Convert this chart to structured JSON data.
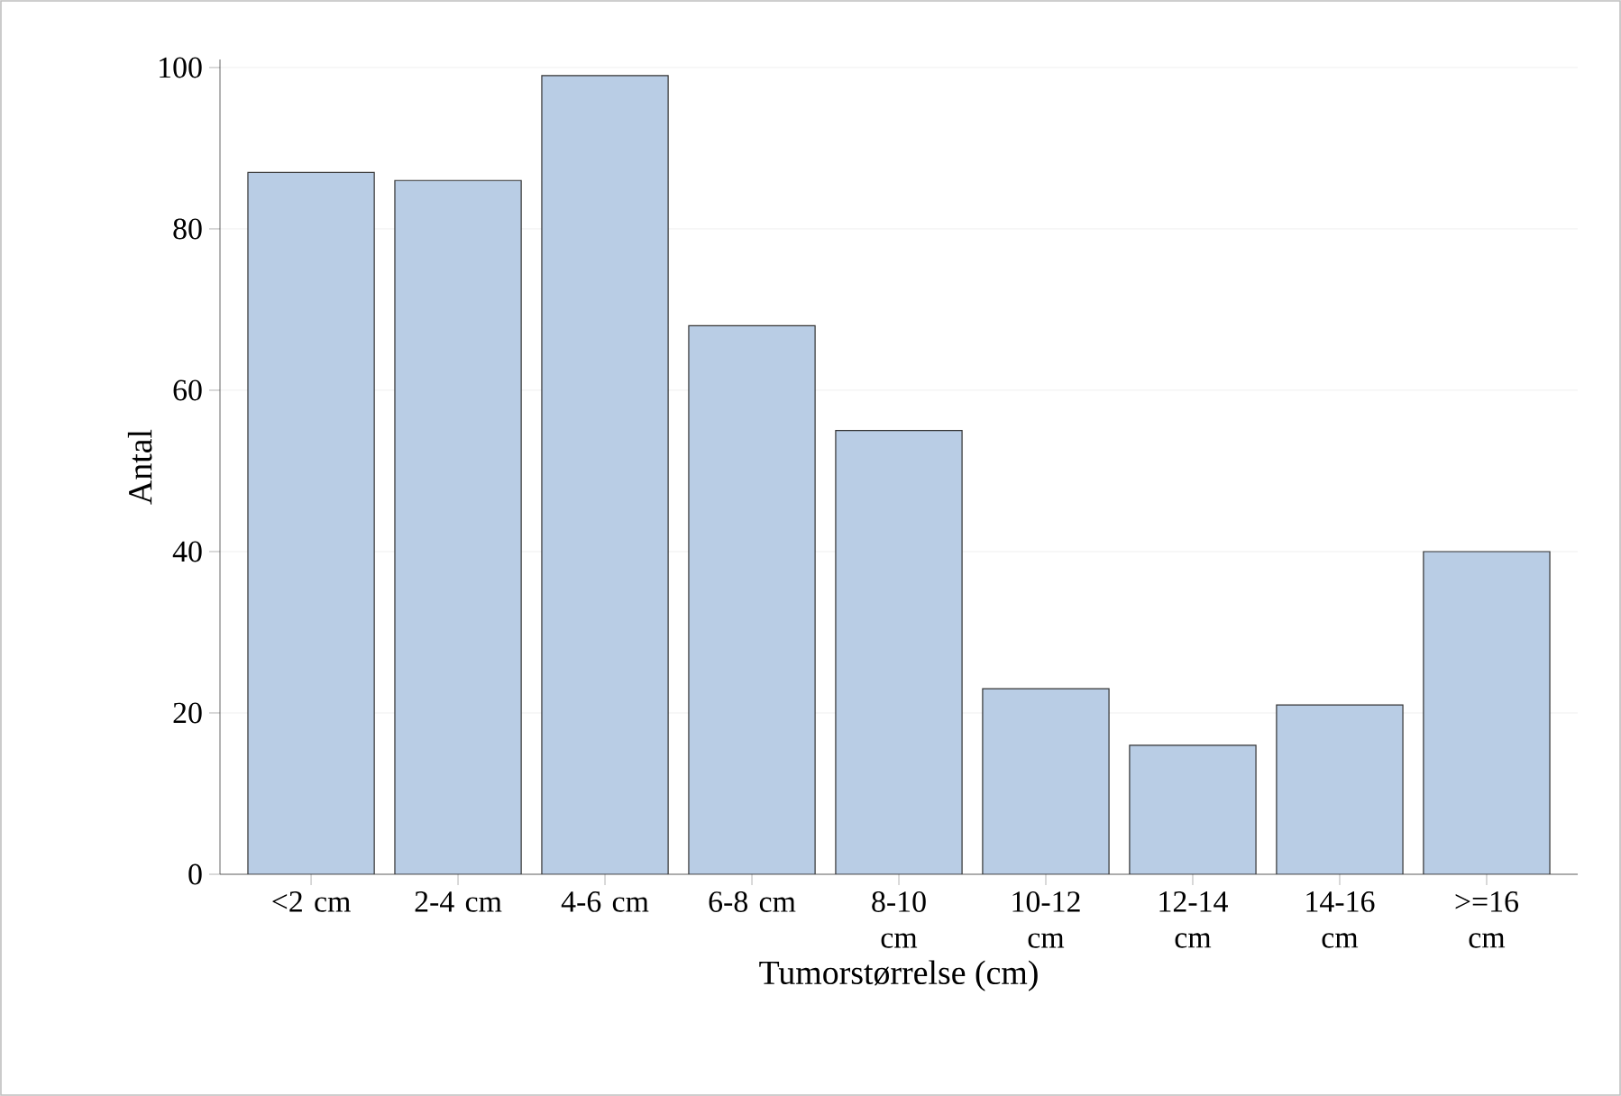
{
  "chart_data": {
    "type": "bar",
    "xlabel": "Tumorstørrelse (cm)",
    "ylabel": "Antal",
    "categories": [
      "<2 cm",
      "2-4 cm",
      "4-6 cm",
      "6-8 cm",
      "8-10 cm",
      "10-12 cm",
      "12-14 cm",
      "14-16 cm",
      ">=16 cm"
    ],
    "values": [
      87,
      86,
      99,
      68,
      55,
      23,
      16,
      21,
      40
    ],
    "color": "#b9cde5",
    "ylim": [
      0,
      101
    ],
    "yticks": [
      0,
      20,
      40,
      60,
      80,
      100
    ],
    "grid": "y"
  }
}
